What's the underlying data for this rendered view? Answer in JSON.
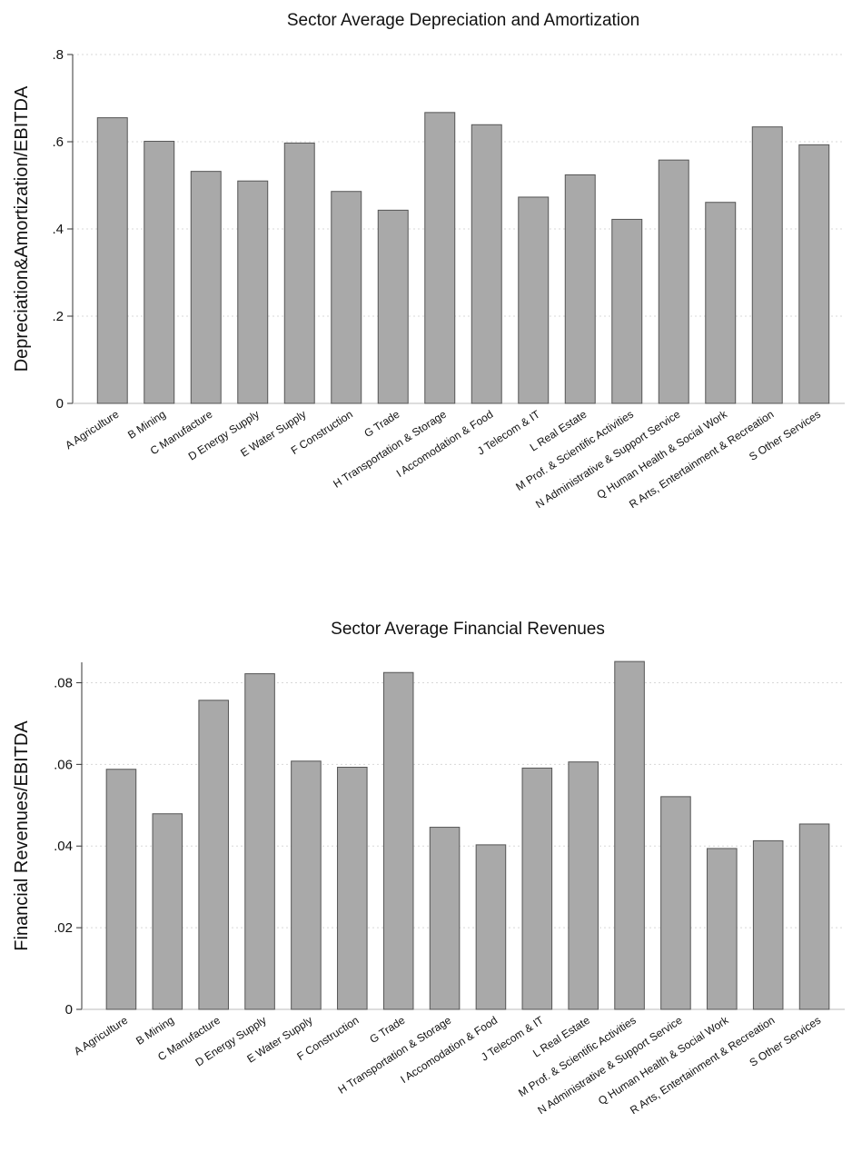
{
  "chart_data": [
    {
      "type": "bar",
      "title": "Sector Average Depreciation and Amortization",
      "xlabel": "",
      "ylabel": "Depreciation&Amortization/EBITDA",
      "ylim": [
        0,
        0.8
      ],
      "yticks": [
        0,
        0.2,
        0.4,
        0.6,
        0.8
      ],
      "yticklabels": [
        "0",
        ".2",
        ".4",
        ".6",
        ".8"
      ],
      "grid": true,
      "bar_color": "#a9a9a9",
      "categories": [
        "A Agriculture",
        "B Mining",
        "C Manufacture",
        "D Energy Supply",
        "E Water Supply",
        "F Construction",
        "G Trade",
        "H Transportation & Storage",
        "I Accomodation & Food",
        "J Telecom & IT",
        "L Real Estate",
        "M Prof. & Scientific Activities",
        "N Administrative & Support Service",
        "Q Human Health & Social Work",
        "R Arts, Entertainment & Recreation",
        "S Other Services"
      ],
      "values": [
        0.655,
        0.601,
        0.532,
        0.51,
        0.597,
        0.486,
        0.443,
        0.667,
        0.639,
        0.473,
        0.524,
        0.422,
        0.558,
        0.461,
        0.634,
        0.593
      ]
    },
    {
      "type": "bar",
      "title": "Sector Average Financial Revenues",
      "xlabel": "",
      "ylabel": "Financial Revenues/EBITDA",
      "ylim": [
        0,
        0.085
      ],
      "yticks": [
        0,
        0.02,
        0.04,
        0.06,
        0.08
      ],
      "yticklabels": [
        "0",
        ".02",
        ".04",
        ".06",
        ".08"
      ],
      "grid": true,
      "bar_color": "#a9a9a9",
      "categories": [
        "A Agriculture",
        "B Mining",
        "C Manufacture",
        "D Energy Supply",
        "E Water Supply",
        "F Construction",
        "G Trade",
        "H Transportation & Storage",
        "I Accomodation & Food",
        "J Telecom & IT",
        "L Real Estate",
        "M Prof. & Scientific Activities",
        "N Administrative & Support Service",
        "Q Human Health & Social Work",
        "R Arts, Entertainment & Recreation",
        "S Other Services"
      ],
      "values": [
        0.0588,
        0.0479,
        0.0757,
        0.0822,
        0.0608,
        0.0593,
        0.0825,
        0.0446,
        0.0403,
        0.0591,
        0.0606,
        0.0852,
        0.0521,
        0.0394,
        0.0413,
        0.0454
      ]
    }
  ]
}
